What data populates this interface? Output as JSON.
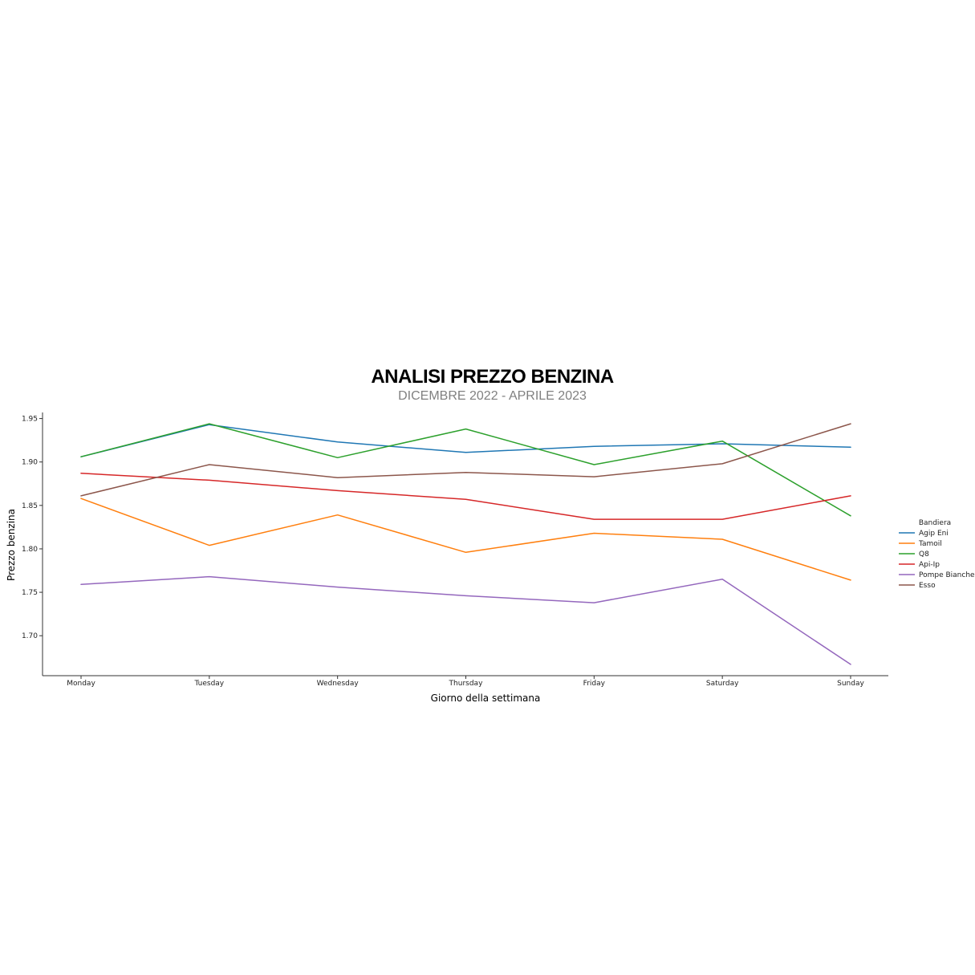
{
  "chart_data": {
    "type": "line",
    "title": "ANALISI PREZZO BENZINA",
    "subtitle": "DICEMBRE 2022 - APRILE 2023",
    "xlabel": "Giorno della settimana",
    "ylabel": "Prezzo benzina",
    "categories": [
      "Monday",
      "Tuesday",
      "Wednesday",
      "Thursday",
      "Friday",
      "Saturday",
      "Sunday"
    ],
    "yticks": [
      "1.70",
      "1.75",
      "1.80",
      "1.85",
      "1.90",
      "1.95"
    ],
    "ylim": [
      1.654,
      1.957
    ],
    "grid": false,
    "legend": {
      "title": "Bandiera",
      "placement": "right"
    },
    "series": [
      {
        "name": "Agip Eni",
        "color": "#1f77b4",
        "values": [
          1.906,
          1.943,
          1.923,
          1.911,
          1.918,
          1.921,
          1.917
        ]
      },
      {
        "name": "Tamoil",
        "color": "#ff7f0e",
        "values": [
          1.858,
          1.804,
          1.839,
          1.796,
          1.818,
          1.811,
          1.764
        ]
      },
      {
        "name": "Q8",
        "color": "#2ca02c",
        "values": [
          1.906,
          1.944,
          1.905,
          1.938,
          1.897,
          1.924,
          1.838
        ]
      },
      {
        "name": "Api-Ip",
        "color": "#d62728",
        "values": [
          1.887,
          1.879,
          1.867,
          1.857,
          1.834,
          1.834,
          1.861
        ]
      },
      {
        "name": "Pompe Bianche",
        "color": "#9467bd",
        "values": [
          1.759,
          1.768,
          1.756,
          1.746,
          1.738,
          1.765,
          1.667
        ]
      },
      {
        "name": "Esso",
        "color": "#8c564b",
        "values": [
          1.861,
          1.897,
          1.882,
          1.888,
          1.883,
          1.898,
          1.944
        ]
      }
    ]
  }
}
